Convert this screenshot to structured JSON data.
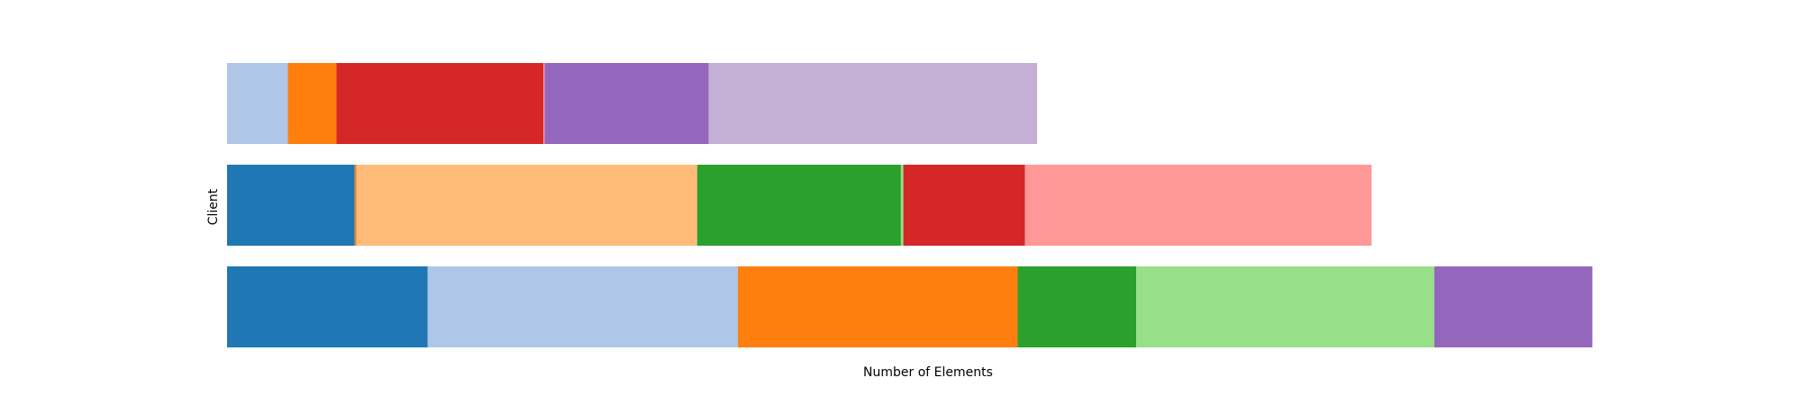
{
  "chart_data": {
    "type": "bar",
    "orientation": "horizontal",
    "stacked": true,
    "title": "",
    "xlabel": "Number of Elements",
    "ylabel": "Client",
    "grid": false,
    "legend": "none",
    "xlim": [
      0,
      22.4
    ],
    "rows": [
      {
        "segments": [
          {
            "value": 1.0,
            "color": "#aec7e8"
          },
          {
            "value": 0.8,
            "color": "#ff7f0e"
          },
          {
            "value": 3.4,
            "color": "#d62728"
          },
          {
            "value": 0.02,
            "color": "#ff9896"
          },
          {
            "value": 2.7,
            "color": "#9467bd"
          },
          {
            "value": 5.4,
            "color": "#c5b0d5"
          }
        ]
      },
      {
        "segments": [
          {
            "value": 2.1,
            "color": "#1f77b4"
          },
          {
            "value": 0.03,
            "color": "#ff7f0e"
          },
          {
            "value": 5.6,
            "color": "#ffbb78"
          },
          {
            "value": 3.35,
            "color": "#2ca02c"
          },
          {
            "value": 0.04,
            "color": "#98df8a"
          },
          {
            "value": 2.0,
            "color": "#d62728"
          },
          {
            "value": 5.7,
            "color": "#ff9896"
          }
        ]
      },
      {
        "segments": [
          {
            "value": 3.3,
            "color": "#1f77b4"
          },
          {
            "value": 5.1,
            "color": "#aec7e8"
          },
          {
            "value": 4.6,
            "color": "#ff7f0e"
          },
          {
            "value": 1.95,
            "color": "#2ca02c"
          },
          {
            "value": 4.9,
            "color": "#98df8a"
          },
          {
            "value": 2.6,
            "color": "#9467bd"
          }
        ]
      }
    ]
  }
}
